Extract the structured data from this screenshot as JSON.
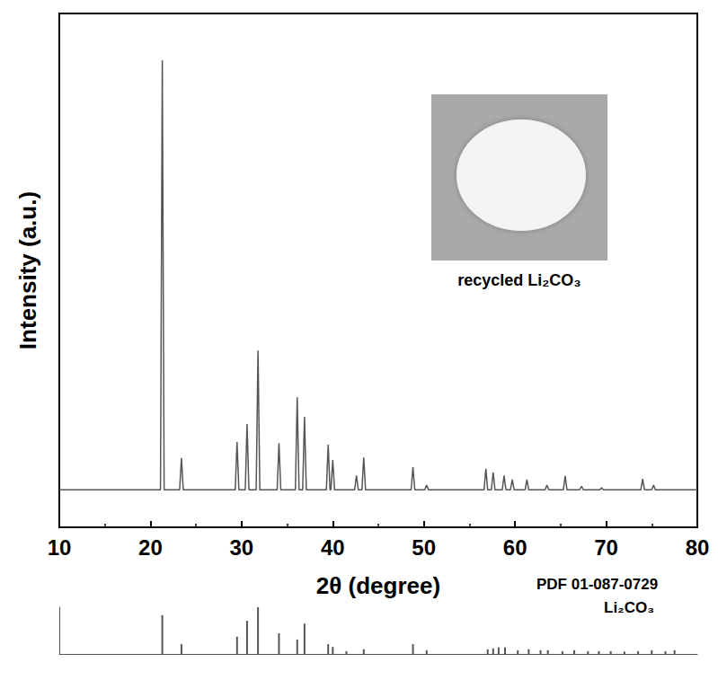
{
  "chart_data": [
    {
      "type": "line",
      "xlabel": "2θ (degree)",
      "ylabel": "Intensity (a.u.)",
      "annotations": [
        "recycled Li₂CO₃"
      ],
      "color": "#555555",
      "xlim": [
        10,
        80
      ],
      "xticks": [
        10,
        20,
        30,
        40,
        50,
        60,
        70,
        80
      ],
      "ylim": [
        0,
        100
      ],
      "tick_labels": "x",
      "grid": false,
      "x": [
        10,
        21.1,
        21.3,
        21.5,
        23.2,
        23.4,
        23.6,
        29.3,
        29.5,
        29.7,
        30.4,
        30.6,
        30.8,
        31.6,
        31.8,
        32.0,
        33.9,
        34.1,
        34.3,
        35.9,
        36.1,
        36.3,
        36.7,
        36.9,
        37.1,
        39.3,
        39.5,
        39.7,
        39.8,
        40.0,
        40.2,
        42.4,
        42.6,
        42.8,
        43.2,
        43.4,
        43.6,
        48.6,
        48.8,
        49.0,
        50.1,
        50.3,
        50.5,
        56.6,
        56.8,
        57.0,
        57.4,
        57.6,
        57.8,
        58.6,
        58.8,
        59.0,
        59.5,
        59.7,
        59.9,
        61.1,
        61.3,
        61.5,
        63.3,
        63.5,
        63.7,
        65.3,
        65.5,
        65.7,
        67.1,
        67.3,
        67.5,
        69.3,
        69.5,
        69.7,
        73.8,
        74.0,
        74.2,
        75.0,
        75.2,
        75.4,
        80
      ],
      "values": [
        7.3,
        7.3,
        90.9,
        7.3,
        7.3,
        13.5,
        7.3,
        7.3,
        16.6,
        7.3,
        7.3,
        20.1,
        7.3,
        7.3,
        34.4,
        7.3,
        7.3,
        16.4,
        7.3,
        7.3,
        25.3,
        7.3,
        7.3,
        21.5,
        7.3,
        7.3,
        16.1,
        7.3,
        7.3,
        13.1,
        7.3,
        7.3,
        10.1,
        7.3,
        7.3,
        13.6,
        7.3,
        7.3,
        11.7,
        7.3,
        7.3,
        8.2,
        7.3,
        7.3,
        11.4,
        7.3,
        7.3,
        10.7,
        7.3,
        7.3,
        10.1,
        7.3,
        7.3,
        9.3,
        7.3,
        7.3,
        9.3,
        7.3,
        7.3,
        8.2,
        7.3,
        7.3,
        10.0,
        7.3,
        7.3,
        8.0,
        7.3,
        7.3,
        7.7,
        7.3,
        7.3,
        9.4,
        7.3,
        7.3,
        8.2,
        7.3,
        7.3
      ]
    },
    {
      "type": "bar",
      "annotations": [
        "PDF 01-087-0729",
        "Li₂CO₃"
      ],
      "color": "#555555",
      "xlim": [
        10,
        80
      ],
      "ylim": [
        0,
        100
      ],
      "tick_labels": false,
      "x": [
        21.3,
        23.4,
        29.5,
        30.6,
        31.8,
        34.1,
        36.1,
        36.9,
        39.5,
        40.0,
        41.5,
        43.4,
        48.8,
        50.3,
        57.0,
        57.6,
        58.2,
        58.9,
        60.3,
        61.5,
        62.8,
        63.6,
        65.2,
        66.5,
        68.0,
        69.2,
        70.5,
        72.0,
        73.5,
        75.0,
        76.5,
        77.5
      ],
      "values": [
        83,
        21,
        37,
        71,
        100,
        44,
        31,
        65,
        21,
        15,
        6,
        10,
        21,
        8,
        10,
        12,
        14,
        14,
        8,
        10,
        8,
        8,
        6,
        8,
        6,
        6,
        6,
        5,
        6,
        8,
        6,
        8
      ]
    }
  ]
}
